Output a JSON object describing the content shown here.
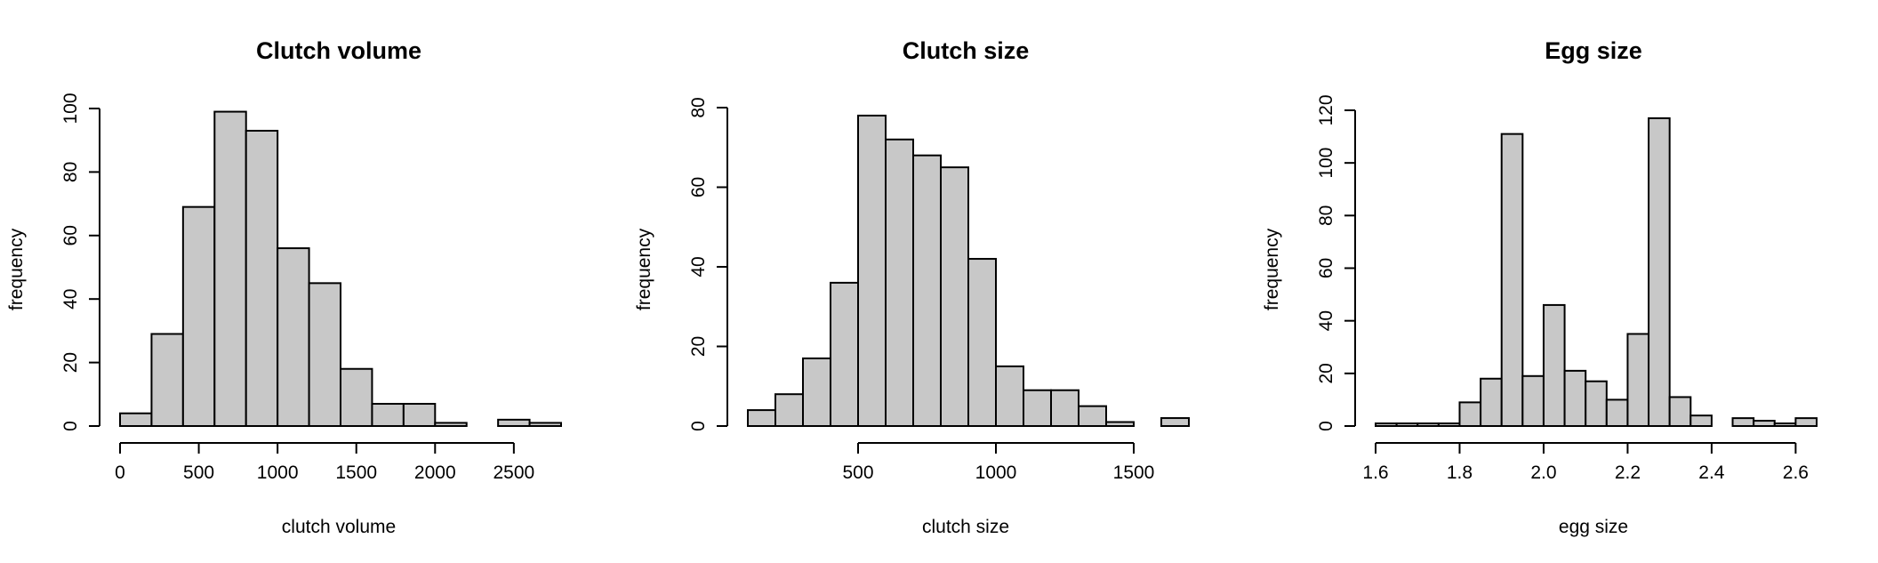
{
  "chart_data": [
    {
      "type": "bar",
      "title": "Clutch volume",
      "xlabel": "clutch volume",
      "ylabel": "frequency",
      "bin_edges": [
        0,
        200,
        400,
        600,
        800,
        1000,
        1200,
        1400,
        1600,
        1800,
        2000,
        2200,
        2400,
        2600,
        2800
      ],
      "values": [
        4,
        29,
        69,
        99,
        93,
        56,
        45,
        18,
        7,
        7,
        1,
        0,
        2,
        1
      ],
      "xlim": [
        0,
        2800
      ],
      "ylim": [
        0,
        100
      ],
      "xticks": [
        0,
        500,
        1000,
        1500,
        2000,
        2500
      ],
      "xtick_labels": [
        "0",
        "500",
        "1000",
        "1500",
        "2000",
        "2500"
      ],
      "yticks": [
        0,
        20,
        40,
        60,
        80,
        100
      ],
      "ytick_labels": [
        "0",
        "20",
        "40",
        "60",
        "80",
        "100"
      ],
      "grid": false,
      "colors": {
        "bar_fill": "#c8c8c8",
        "bar_stroke": "#000000"
      }
    },
    {
      "type": "bar",
      "title": "Clutch size",
      "xlabel": "clutch size",
      "ylabel": "frequency",
      "bin_edges": [
        100,
        200,
        300,
        400,
        500,
        600,
        700,
        800,
        900,
        1000,
        1100,
        1200,
        1300,
        1400,
        1500,
        1600,
        1700
      ],
      "values": [
        4,
        8,
        17,
        36,
        78,
        72,
        68,
        65,
        42,
        15,
        9,
        9,
        5,
        1,
        0,
        2
      ],
      "xlim": [
        100,
        1700
      ],
      "ylim": [
        0,
        80
      ],
      "xticks": [
        500,
        1000,
        1500
      ],
      "xtick_labels": [
        "500",
        "1000",
        "1500"
      ],
      "yticks": [
        0,
        20,
        40,
        60,
        80
      ],
      "ytick_labels": [
        "0",
        "20",
        "40",
        "60",
        "80"
      ],
      "grid": false,
      "colors": {
        "bar_fill": "#c8c8c8",
        "bar_stroke": "#000000"
      }
    },
    {
      "type": "bar",
      "title": "Egg size",
      "xlabel": "egg size",
      "ylabel": "frequency",
      "bin_edges": [
        1.6,
        1.65,
        1.7,
        1.75,
        1.8,
        1.85,
        1.9,
        1.95,
        2.0,
        2.05,
        2.1,
        2.15,
        2.2,
        2.25,
        2.3,
        2.35,
        2.4,
        2.45,
        2.5,
        2.55,
        2.6,
        2.65
      ],
      "values": [
        1,
        1,
        1,
        1,
        9,
        18,
        111,
        19,
        46,
        21,
        17,
        10,
        35,
        117,
        11,
        4,
        0,
        3,
        2,
        1,
        3
      ],
      "xlim": [
        1.6,
        2.65
      ],
      "ylim": [
        0,
        120
      ],
      "xticks": [
        1.6,
        1.8,
        2.0,
        2.2,
        2.4,
        2.6
      ],
      "xtick_labels": [
        "1.6",
        "1.8",
        "2.0",
        "2.2",
        "2.4",
        "2.6"
      ],
      "yticks": [
        0,
        20,
        40,
        60,
        80,
        100,
        120
      ],
      "ytick_labels": [
        "0",
        "20",
        "40",
        "60",
        "80",
        "100",
        "120"
      ],
      "grid": false,
      "colors": {
        "bar_fill": "#c8c8c8",
        "bar_stroke": "#000000"
      }
    }
  ]
}
